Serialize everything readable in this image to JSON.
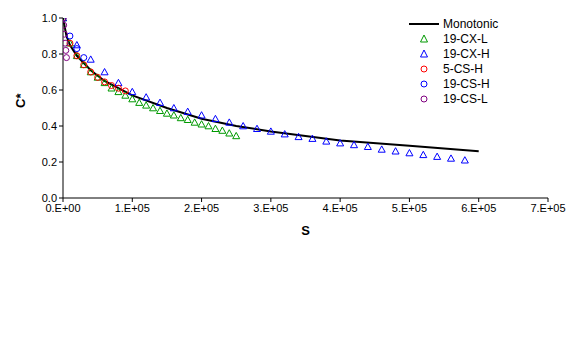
{
  "chart_data": {
    "type": "scatter",
    "x_label": "S",
    "y_label": "C*",
    "xlim": [
      0,
      700000
    ],
    "xticks": [
      {
        "value": 0,
        "label": "0.E+00"
      },
      {
        "value": 100000,
        "label": "1.E+05"
      },
      {
        "value": 200000,
        "label": "2.E+05"
      },
      {
        "value": 300000,
        "label": "3.E+05"
      },
      {
        "value": 400000,
        "label": "4.E+05"
      },
      {
        "value": 500000,
        "label": "5.E+05"
      },
      {
        "value": 600000,
        "label": "6.E+05"
      },
      {
        "value": 700000,
        "label": "7.E+05"
      }
    ],
    "ylim": [
      0,
      1
    ],
    "yticks": [
      {
        "value": 0,
        "label": "0.0"
      },
      {
        "value": 0.2,
        "label": "0.2"
      },
      {
        "value": 0.4,
        "label": "0.4"
      },
      {
        "value": 0.6,
        "label": "0.6"
      },
      {
        "value": 0.8,
        "label": "0.8"
      },
      {
        "value": 1,
        "label": "1.0"
      }
    ],
    "grid": false,
    "legend": "upper right",
    "series": [
      {
        "name": "Monotonic",
        "type": "line",
        "color": "#000000",
        "line_style": "solid",
        "x": [
          0,
          5000,
          10000,
          20000,
          40000,
          60000,
          80000,
          100000,
          150000,
          200000,
          250000,
          300000,
          400000,
          500000,
          600000
        ],
        "values": [
          1.0,
          0.9,
          0.85,
          0.79,
          0.71,
          0.65,
          0.61,
          0.57,
          0.5,
          0.44,
          0.4,
          0.37,
          0.32,
          0.29,
          0.26
        ]
      },
      {
        "name": "19-CX-L",
        "type": "scatter",
        "color": "#009900",
        "marker": "triangle",
        "x": [
          0,
          10000,
          20000,
          30000,
          40000,
          50000,
          60000,
          70000,
          80000,
          90000,
          100000,
          110000,
          120000,
          130000,
          140000,
          150000,
          160000,
          170000,
          180000,
          190000,
          200000,
          210000,
          220000,
          230000,
          240000,
          250000
        ],
        "values": [
          1.0,
          0.86,
          0.79,
          0.74,
          0.7,
          0.67,
          0.64,
          0.61,
          0.59,
          0.57,
          0.55,
          0.53,
          0.515,
          0.5,
          0.485,
          0.47,
          0.46,
          0.445,
          0.435,
          0.42,
          0.41,
          0.4,
          0.385,
          0.375,
          0.36,
          0.345
        ]
      },
      {
        "name": "19-CX-H",
        "type": "scatter",
        "color": "#0000ff",
        "marker": "triangle",
        "x": [
          0,
          20000,
          40000,
          60000,
          80000,
          100000,
          120000,
          140000,
          160000,
          180000,
          200000,
          220000,
          240000,
          260000,
          280000,
          300000,
          320000,
          340000,
          360000,
          380000,
          400000,
          420000,
          440000,
          460000,
          480000,
          500000,
          520000,
          540000,
          560000,
          580000
        ],
        "values": [
          1.0,
          0.85,
          0.77,
          0.7,
          0.64,
          0.59,
          0.56,
          0.53,
          0.5,
          0.48,
          0.46,
          0.44,
          0.42,
          0.4,
          0.385,
          0.37,
          0.355,
          0.34,
          0.33,
          0.315,
          0.305,
          0.295,
          0.285,
          0.27,
          0.26,
          0.25,
          0.24,
          0.23,
          0.22,
          0.21
        ]
      },
      {
        "name": "5-CS-H",
        "type": "scatter",
        "color": "#ff0000",
        "marker": "circle",
        "x": [
          0,
          10000,
          20000,
          30000,
          40000,
          50000,
          60000,
          70000,
          80000,
          90000
        ],
        "values": [
          1.0,
          0.86,
          0.79,
          0.74,
          0.7,
          0.67,
          0.645,
          0.625,
          0.61,
          0.595
        ]
      },
      {
        "name": "19-CS-H",
        "type": "scatter",
        "color": "#0000ff",
        "marker": "circle",
        "x": [
          0,
          10000,
          20000,
          30000
        ],
        "values": [
          1.0,
          0.9,
          0.83,
          0.78
        ]
      },
      {
        "name": "19-CS-L",
        "type": "scatter",
        "color": "#800080",
        "marker": "circle",
        "x": [
          0,
          1000,
          2000,
          3000,
          4000,
          5000
        ],
        "values": [
          1.0,
          0.96,
          0.91,
          0.86,
          0.82,
          0.78
        ]
      }
    ]
  }
}
